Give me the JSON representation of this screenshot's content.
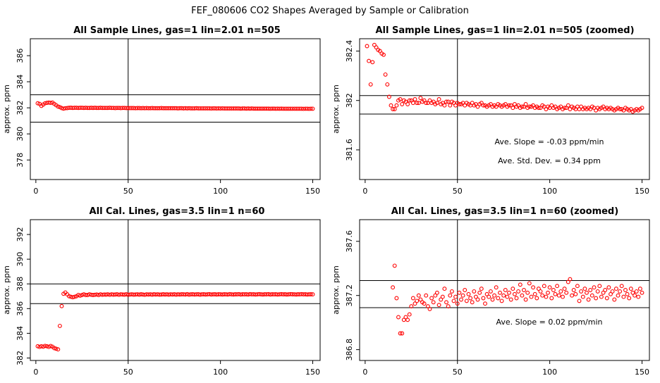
{
  "figure_title": "FEF_080606  CO2 Shapes Averaged by Sample or Calibration",
  "colors": {
    "points": "#ff0000",
    "lines": "#000000",
    "background": "#ffffff"
  },
  "chart_data": [
    {
      "type": "scatter",
      "title": "All Sample Lines, gas=1 lin=2.01 n=505",
      "xlabel": "",
      "ylabel": "approx. ppm",
      "xlim": [
        -3,
        154
      ],
      "ylim": [
        376.5,
        387.3
      ],
      "xticks": [
        0,
        50,
        100,
        150
      ],
      "yticks": [
        378,
        380,
        382,
        384,
        386
      ],
      "hlines": [
        380.9,
        383.0
      ],
      "vline": 50,
      "x": [
        1,
        2,
        3,
        4,
        5,
        6,
        7,
        8,
        9,
        10,
        11,
        12,
        13,
        14,
        15,
        16,
        17,
        18,
        19,
        20,
        21,
        22,
        23,
        24,
        25,
        26,
        27,
        28,
        29,
        30,
        31,
        32,
        33,
        34,
        35,
        36,
        37,
        38,
        39,
        40,
        41,
        42,
        43,
        44,
        45,
        46,
        47,
        48,
        49,
        50,
        51,
        52,
        53,
        54,
        55,
        56,
        57,
        58,
        59,
        60,
        61,
        62,
        63,
        64,
        65,
        66,
        67,
        68,
        69,
        70,
        71,
        72,
        73,
        74,
        75,
        76,
        77,
        78,
        79,
        80,
        81,
        82,
        83,
        84,
        85,
        86,
        87,
        88,
        89,
        90,
        91,
        92,
        93,
        94,
        95,
        96,
        97,
        98,
        99,
        100,
        101,
        102,
        103,
        104,
        105,
        106,
        107,
        108,
        109,
        110,
        111,
        112,
        113,
        114,
        115,
        116,
        117,
        118,
        119,
        120,
        121,
        122,
        123,
        124,
        125,
        126,
        127,
        128,
        129,
        130,
        131,
        132,
        133,
        134,
        135,
        136,
        137,
        138,
        139,
        140,
        141,
        142,
        143,
        144,
        145,
        146,
        147,
        148,
        149,
        150
      ],
      "y": [
        382.35,
        382.3,
        382.15,
        382.25,
        382.35,
        382.38,
        382.4,
        382.38,
        382.4,
        382.3,
        382.2,
        382.1,
        382.05,
        381.98,
        381.94,
        381.97,
        381.98,
        382.0,
        382.01,
        381.99,
        382.0,
        382.0,
        381.99,
        382.0,
        382.0,
        381.99,
        382.0,
        381.99,
        381.99,
        382.0,
        381.99,
        382.0,
        381.99,
        381.99,
        382.0,
        381.99,
        381.99,
        381.99,
        381.99,
        382.0,
        381.99,
        381.99,
        381.98,
        381.99,
        381.99,
        381.98,
        381.99,
        381.99,
        381.98,
        381.98,
        381.98,
        381.98,
        381.98,
        381.97,
        381.98,
        381.98,
        381.97,
        381.98,
        381.97,
        381.98,
        381.97,
        381.97,
        381.98,
        381.97,
        381.97,
        381.97,
        381.97,
        381.98,
        381.97,
        381.97,
        381.97,
        381.97,
        381.97,
        381.97,
        381.97,
        381.97,
        381.96,
        381.97,
        381.97,
        381.96,
        381.97,
        381.96,
        381.97,
        381.96,
        381.96,
        381.96,
        381.97,
        381.96,
        381.96,
        381.96,
        381.96,
        381.96,
        381.96,
        381.96,
        381.95,
        381.96,
        381.96,
        381.95,
        381.96,
        381.95,
        381.96,
        381.95,
        381.95,
        381.95,
        381.95,
        381.95,
        381.95,
        381.95,
        381.95,
        381.95,
        381.94,
        381.95,
        381.95,
        381.94,
        381.95,
        381.94,
        381.95,
        381.94,
        381.94,
        381.94,
        381.94,
        381.94,
        381.94,
        381.94,
        381.94,
        381.94,
        381.93,
        381.94,
        381.94,
        381.93,
        381.94,
        381.93,
        381.94,
        381.93,
        381.93,
        381.93,
        381.93,
        381.93,
        381.93,
        381.93,
        381.93,
        381.93,
        381.93,
        381.93,
        381.92,
        381.93,
        381.93,
        381.92,
        381.93,
        381.93
      ],
      "annotations": []
    },
    {
      "type": "scatter",
      "title": "All Sample Lines, gas=1 lin=2.01 n=505 (zoomed)",
      "xlabel": "",
      "ylabel": "approx. ppm",
      "xlim": [
        -3,
        154
      ],
      "ylim": [
        381.36,
        382.5
      ],
      "xticks": [
        0,
        50,
        100,
        150
      ],
      "yticks": [
        381.6,
        382.0,
        382.4
      ],
      "hlines": [
        381.89,
        382.04
      ],
      "vline": 50,
      "x": [
        1,
        2,
        3,
        4,
        5,
        6,
        7,
        8,
        9,
        10,
        11,
        12,
        13,
        14,
        15,
        16,
        17,
        18,
        19,
        20,
        21,
        22,
        23,
        24,
        25,
        26,
        27,
        28,
        29,
        30,
        31,
        32,
        33,
        34,
        35,
        36,
        37,
        38,
        39,
        40,
        41,
        42,
        43,
        44,
        45,
        46,
        47,
        48,
        49,
        50,
        51,
        52,
        53,
        54,
        55,
        56,
        57,
        58,
        59,
        60,
        61,
        62,
        63,
        64,
        65,
        66,
        67,
        68,
        69,
        70,
        71,
        72,
        73,
        74,
        75,
        76,
        77,
        78,
        79,
        80,
        81,
        82,
        83,
        84,
        85,
        86,
        87,
        88,
        89,
        90,
        91,
        92,
        93,
        94,
        95,
        96,
        97,
        98,
        99,
        100,
        101,
        102,
        103,
        104,
        105,
        106,
        107,
        108,
        109,
        110,
        111,
        112,
        113,
        114,
        115,
        116,
        117,
        118,
        119,
        120,
        121,
        122,
        123,
        124,
        125,
        126,
        127,
        128,
        129,
        130,
        131,
        132,
        133,
        134,
        135,
        136,
        137,
        138,
        139,
        140,
        141,
        142,
        143,
        144,
        145,
        146,
        147,
        148,
        149,
        150
      ],
      "y": [
        382.44,
        382.32,
        382.13,
        382.31,
        382.45,
        382.43,
        382.41,
        382.4,
        382.38,
        382.37,
        382.21,
        382.13,
        382.03,
        381.96,
        381.93,
        381.93,
        381.96,
        382.0,
        382.01,
        381.97,
        382.0,
        381.99,
        381.97,
        382.0,
        382.0,
        381.98,
        382.01,
        381.98,
        381.98,
        382.02,
        381.99,
        382.0,
        381.98,
        381.98,
        382.0,
        381.98,
        381.99,
        381.97,
        381.98,
        382.01,
        381.97,
        381.98,
        381.96,
        381.99,
        381.99,
        381.96,
        381.99,
        381.98,
        381.96,
        381.98,
        381.97,
        381.97,
        381.98,
        381.96,
        381.98,
        381.97,
        381.96,
        381.98,
        381.96,
        381.97,
        381.95,
        381.97,
        381.98,
        381.96,
        381.96,
        381.95,
        381.96,
        381.97,
        381.95,
        381.96,
        381.95,
        381.97,
        381.96,
        381.95,
        381.96,
        381.97,
        381.95,
        381.96,
        381.96,
        381.94,
        381.97,
        381.95,
        381.96,
        381.94,
        381.95,
        381.95,
        381.97,
        381.94,
        381.95,
        381.95,
        381.96,
        381.94,
        381.95,
        381.94,
        381.94,
        381.96,
        381.95,
        381.93,
        381.95,
        381.94,
        381.96,
        381.94,
        381.95,
        381.93,
        381.94,
        381.95,
        381.93,
        381.94,
        381.94,
        381.96,
        381.93,
        381.95,
        381.94,
        381.93,
        381.95,
        381.93,
        381.95,
        381.93,
        381.94,
        381.93,
        381.94,
        381.93,
        381.95,
        381.94,
        381.92,
        381.94,
        381.93,
        381.94,
        381.95,
        381.93,
        381.94,
        381.93,
        381.94,
        381.93,
        381.92,
        381.93,
        381.94,
        381.93,
        381.93,
        381.92,
        381.94,
        381.93,
        381.92,
        381.93,
        381.91,
        381.92,
        381.93,
        381.92,
        381.93,
        381.94
      ],
      "annotations": [
        "Ave. Slope =  -0.03  ppm/min",
        "Ave. Std. Dev. =  0.34  ppm"
      ]
    },
    {
      "type": "scatter",
      "title": "All Cal. Lines, gas=3.5 lin=1 n=60",
      "xlabel": "",
      "ylabel": "approx. ppm",
      "xlim": [
        -3,
        154
      ],
      "ylim": [
        381.8,
        393.2
      ],
      "xticks": [
        0,
        50,
        100,
        150
      ],
      "yticks": [
        382,
        384,
        386,
        388,
        390,
        392
      ],
      "hlines": [
        386.4,
        388.0
      ],
      "vline": 50,
      "x": [
        1,
        2,
        3,
        4,
        5,
        6,
        7,
        8,
        9,
        10,
        11,
        12,
        13,
        14,
        15,
        16,
        17,
        18,
        19,
        20,
        21,
        22,
        23,
        24,
        25,
        26,
        27,
        28,
        29,
        30,
        31,
        32,
        33,
        34,
        35,
        36,
        37,
        38,
        39,
        40,
        41,
        42,
        43,
        44,
        45,
        46,
        47,
        48,
        49,
        50,
        51,
        52,
        53,
        54,
        55,
        56,
        57,
        58,
        59,
        60,
        61,
        62,
        63,
        64,
        65,
        66,
        67,
        68,
        69,
        70,
        71,
        72,
        73,
        74,
        75,
        76,
        77,
        78,
        79,
        80,
        81,
        82,
        83,
        84,
        85,
        86,
        87,
        88,
        89,
        90,
        91,
        92,
        93,
        94,
        95,
        96,
        97,
        98,
        99,
        100,
        101,
        102,
        103,
        104,
        105,
        106,
        107,
        108,
        109,
        110,
        111,
        112,
        113,
        114,
        115,
        116,
        117,
        118,
        119,
        120,
        121,
        122,
        123,
        124,
        125,
        126,
        127,
        128,
        129,
        130,
        131,
        132,
        133,
        134,
        135,
        136,
        137,
        138,
        139,
        140,
        141,
        142,
        143,
        144,
        145,
        146,
        147,
        148,
        149,
        150
      ],
      "y": [
        382.95,
        382.9,
        382.95,
        382.92,
        382.98,
        382.95,
        382.9,
        382.97,
        382.92,
        382.8,
        382.75,
        382.7,
        384.6,
        386.2,
        387.2,
        387.3,
        387.15,
        387.0,
        386.95,
        386.92,
        386.95,
        387.0,
        387.1,
        387.05,
        387.1,
        387.15,
        387.1,
        387.1,
        387.15,
        387.12,
        387.1,
        387.12,
        387.14,
        387.1,
        387.15,
        387.12,
        387.14,
        387.13,
        387.15,
        387.12,
        387.15,
        387.13,
        387.14,
        387.16,
        387.12,
        387.15,
        387.14,
        387.13,
        387.16,
        387.12,
        387.14,
        387.15,
        387.13,
        387.14,
        387.15,
        387.13,
        387.16,
        387.14,
        387.12,
        387.15,
        387.14,
        387.15,
        387.13,
        387.16,
        387.14,
        387.15,
        387.13,
        387.14,
        387.16,
        387.14,
        387.15,
        387.13,
        387.15,
        387.14,
        387.16,
        387.13,
        387.15,
        387.14,
        387.16,
        387.15,
        387.14,
        387.17,
        387.13,
        387.15,
        387.16,
        387.14,
        387.15,
        387.16,
        387.13,
        387.15,
        387.16,
        387.14,
        387.15,
        387.17,
        387.14,
        387.15,
        387.16,
        387.14,
        387.16,
        387.15,
        387.14,
        387.16,
        387.15,
        387.14,
        387.17,
        387.15,
        387.14,
        387.16,
        387.15,
        387.17,
        387.14,
        387.16,
        387.15,
        387.16,
        387.14,
        387.17,
        387.15,
        387.16,
        387.14,
        387.15,
        387.17,
        387.15,
        387.14,
        387.16,
        387.15,
        387.17,
        387.14,
        387.16,
        387.15,
        387.16,
        387.14,
        387.15,
        387.17,
        387.15,
        387.16,
        387.14,
        387.15,
        387.17,
        387.16,
        387.15,
        387.14,
        387.16,
        387.15,
        387.17,
        387.15,
        387.16,
        387.14,
        387.15,
        387.16,
        387.15
      ],
      "annotations": []
    },
    {
      "type": "scatter",
      "title": "All Cal. Lines, gas=3.5 lin=1 n=60 (zoomed)",
      "xlabel": "",
      "ylabel": "approx. ppm",
      "xlim": [
        -3,
        154
      ],
      "ylim": [
        386.72,
        387.76
      ],
      "xticks": [
        0,
        50,
        100,
        150
      ],
      "yticks": [
        386.8,
        387.2,
        387.6
      ],
      "hlines": [
        387.11,
        387.31
      ],
      "vline": 50,
      "x": [
        15,
        16,
        17,
        18,
        19,
        20,
        21,
        22,
        23,
        24,
        25,
        26,
        27,
        28,
        29,
        30,
        31,
        32,
        33,
        34,
        35,
        36,
        37,
        38,
        39,
        40,
        41,
        42,
        43,
        44,
        45,
        46,
        47,
        48,
        49,
        50,
        51,
        52,
        53,
        54,
        55,
        56,
        57,
        58,
        59,
        60,
        61,
        62,
        63,
        64,
        65,
        66,
        67,
        68,
        69,
        70,
        71,
        72,
        73,
        74,
        75,
        76,
        77,
        78,
        79,
        80,
        81,
        82,
        83,
        84,
        85,
        86,
        87,
        88,
        89,
        90,
        91,
        92,
        93,
        94,
        95,
        96,
        97,
        98,
        99,
        100,
        101,
        102,
        103,
        104,
        105,
        106,
        107,
        108,
        109,
        110,
        111,
        112,
        113,
        114,
        115,
        116,
        117,
        118,
        119,
        120,
        121,
        122,
        123,
        124,
        125,
        126,
        127,
        128,
        129,
        130,
        131,
        132,
        133,
        134,
        135,
        136,
        137,
        138,
        139,
        140,
        141,
        142,
        143,
        144,
        145,
        146,
        147,
        148,
        149,
        150
      ],
      "y": [
        387.26,
        387.42,
        387.18,
        387.04,
        386.92,
        386.92,
        387.02,
        387.04,
        387.02,
        387.06,
        387.12,
        387.18,
        387.14,
        387.16,
        387.2,
        387.17,
        387.15,
        387.14,
        387.2,
        387.12,
        387.1,
        387.18,
        387.15,
        387.2,
        387.22,
        387.13,
        387.17,
        387.19,
        387.25,
        387.15,
        387.12,
        387.2,
        387.23,
        387.16,
        387.19,
        387.14,
        387.22,
        387.17,
        387.2,
        387.24,
        387.16,
        387.21,
        387.18,
        387.15,
        387.23,
        387.19,
        387.17,
        387.22,
        387.25,
        387.18,
        387.14,
        387.21,
        387.19,
        387.23,
        387.17,
        387.2,
        387.26,
        387.18,
        387.22,
        387.16,
        387.2,
        387.24,
        387.19,
        387.22,
        387.17,
        387.25,
        387.21,
        387.18,
        387.23,
        387.28,
        387.2,
        387.24,
        387.17,
        387.22,
        387.29,
        387.19,
        387.26,
        387.21,
        387.18,
        387.25,
        387.23,
        387.2,
        387.27,
        387.19,
        387.22,
        387.26,
        387.18,
        387.24,
        387.21,
        387.27,
        387.2,
        387.23,
        387.19,
        387.25,
        387.22,
        387.3,
        387.32,
        387.2,
        387.24,
        387.21,
        387.27,
        387.16,
        387.23,
        387.19,
        387.25,
        387.22,
        387.17,
        387.24,
        387.2,
        387.26,
        387.18,
        387.23,
        387.27,
        387.19,
        387.22,
        387.24,
        387.18,
        387.26,
        387.21,
        387.23,
        387.17,
        387.25,
        387.2,
        387.23,
        387.27,
        387.19,
        387.24,
        387.21,
        387.18,
        387.25,
        387.22,
        387.2,
        387.23,
        387.19,
        387.25,
        387.22
      ],
      "annotations": [
        "Ave. Slope =  0.02  ppm/min"
      ]
    }
  ]
}
